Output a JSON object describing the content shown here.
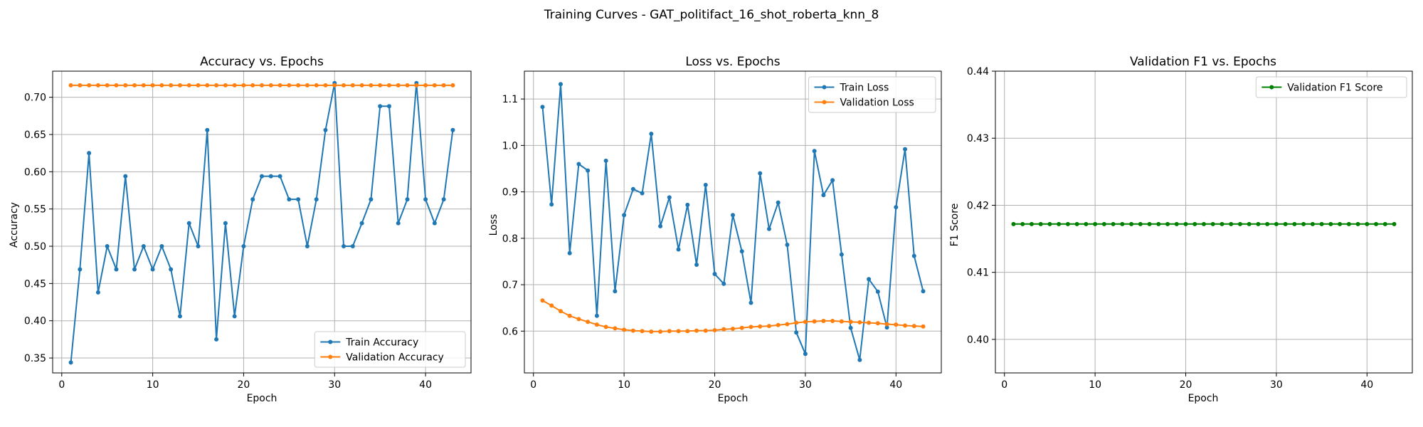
{
  "figure": {
    "suptitle": "Training Curves - GAT_politifact_16_shot_roberta_knn_8"
  },
  "chart_data": [
    {
      "type": "line",
      "title": "Accuracy vs. Epochs",
      "xlabel": "Epoch",
      "ylabel": "Accuracy",
      "xlim": [
        -1,
        45
      ],
      "ylim": [
        0.33,
        0.735
      ],
      "xticks": [
        0,
        10,
        20,
        30,
        40
      ],
      "yticks": [
        0.35,
        0.4,
        0.45,
        0.5,
        0.55,
        0.6,
        0.65,
        0.7
      ],
      "yformat": 2,
      "grid": true,
      "legend_position": "lower right",
      "x": [
        1,
        2,
        3,
        4,
        5,
        6,
        7,
        8,
        9,
        10,
        11,
        12,
        13,
        14,
        15,
        16,
        17,
        18,
        19,
        20,
        21,
        22,
        23,
        24,
        25,
        26,
        27,
        28,
        29,
        30,
        31,
        32,
        33,
        34,
        35,
        36,
        37,
        38,
        39,
        40,
        41,
        42,
        43
      ],
      "series": [
        {
          "name": "Train Accuracy",
          "color": "#1f77b4",
          "values": [
            0.344,
            0.469,
            0.625,
            0.438,
            0.5,
            0.469,
            0.594,
            0.469,
            0.5,
            0.469,
            0.5,
            0.469,
            0.406,
            0.531,
            0.5,
            0.656,
            0.375,
            0.531,
            0.406,
            0.5,
            0.563,
            0.594,
            0.594,
            0.594,
            0.563,
            0.563,
            0.5,
            0.563,
            0.656,
            0.719,
            0.5,
            0.5,
            0.531,
            0.563,
            0.688,
            0.688,
            0.531,
            0.563,
            0.719,
            0.563,
            0.531,
            0.563,
            0.656
          ]
        },
        {
          "name": "Validation Accuracy",
          "color": "#ff7f0e",
          "values": [
            0.716,
            0.716,
            0.716,
            0.716,
            0.716,
            0.716,
            0.716,
            0.716,
            0.716,
            0.716,
            0.716,
            0.716,
            0.716,
            0.716,
            0.716,
            0.716,
            0.716,
            0.716,
            0.716,
            0.716,
            0.716,
            0.716,
            0.716,
            0.716,
            0.716,
            0.716,
            0.716,
            0.716,
            0.716,
            0.716,
            0.716,
            0.716,
            0.716,
            0.716,
            0.716,
            0.716,
            0.716,
            0.716,
            0.716,
            0.716,
            0.716,
            0.716,
            0.716
          ]
        }
      ]
    },
    {
      "type": "line",
      "title": "Loss vs. Epochs",
      "xlabel": "Epoch",
      "ylabel": "Loss",
      "xlim": [
        -1,
        45
      ],
      "ylim": [
        0.51,
        1.16
      ],
      "xticks": [
        0,
        10,
        20,
        30,
        40
      ],
      "yticks": [
        0.6,
        0.7,
        0.8,
        0.9,
        1.0,
        1.1
      ],
      "yformat": 1,
      "grid": true,
      "legend_position": "upper right",
      "x": [
        1,
        2,
        3,
        4,
        5,
        6,
        7,
        8,
        9,
        10,
        11,
        12,
        13,
        14,
        15,
        16,
        17,
        18,
        19,
        20,
        21,
        22,
        23,
        24,
        25,
        26,
        27,
        28,
        29,
        30,
        31,
        32,
        33,
        34,
        35,
        36,
        37,
        38,
        39,
        40,
        41,
        42,
        43
      ],
      "series": [
        {
          "name": "Train Loss",
          "color": "#1f77b4",
          "values": [
            1.083,
            0.873,
            1.132,
            0.768,
            0.96,
            0.946,
            0.633,
            0.967,
            0.686,
            0.85,
            0.906,
            0.897,
            1.025,
            0.826,
            0.888,
            0.776,
            0.872,
            0.743,
            0.915,
            0.723,
            0.702,
            0.85,
            0.772,
            0.661,
            0.94,
            0.82,
            0.877,
            0.786,
            0.597,
            0.551,
            0.988,
            0.893,
            0.925,
            0.765,
            0.607,
            0.538,
            0.712,
            0.685,
            0.608,
            0.867,
            0.992,
            0.762,
            0.686
          ]
        },
        {
          "name": "Validation Loss",
          "color": "#ff7f0e",
          "values": [
            0.666,
            0.655,
            0.643,
            0.633,
            0.626,
            0.62,
            0.614,
            0.609,
            0.606,
            0.603,
            0.601,
            0.6,
            0.599,
            0.599,
            0.6,
            0.6,
            0.6,
            0.601,
            0.601,
            0.602,
            0.604,
            0.605,
            0.607,
            0.609,
            0.61,
            0.611,
            0.613,
            0.615,
            0.618,
            0.62,
            0.621,
            0.622,
            0.622,
            0.621,
            0.62,
            0.619,
            0.618,
            0.617,
            0.615,
            0.614,
            0.612,
            0.611,
            0.61
          ]
        }
      ]
    },
    {
      "type": "line",
      "title": "Validation F1 vs. Epochs",
      "xlabel": "Epoch",
      "ylabel": "F1 Score",
      "xlim": [
        -1,
        45
      ],
      "ylim": [
        0.395,
        0.44
      ],
      "xticks": [
        0,
        10,
        20,
        30,
        40
      ],
      "yticks": [
        0.4,
        0.41,
        0.42,
        0.43,
        0.44
      ],
      "yformat": 2,
      "grid": true,
      "legend_position": "upper right",
      "x": [
        1,
        2,
        3,
        4,
        5,
        6,
        7,
        8,
        9,
        10,
        11,
        12,
        13,
        14,
        15,
        16,
        17,
        18,
        19,
        20,
        21,
        22,
        23,
        24,
        25,
        26,
        27,
        28,
        29,
        30,
        31,
        32,
        33,
        34,
        35,
        36,
        37,
        38,
        39,
        40,
        41,
        42,
        43
      ],
      "series": [
        {
          "name": "Validation F1 Score",
          "color": "#008000",
          "values": [
            0.4172,
            0.4172,
            0.4172,
            0.4172,
            0.4172,
            0.4172,
            0.4172,
            0.4172,
            0.4172,
            0.4172,
            0.4172,
            0.4172,
            0.4172,
            0.4172,
            0.4172,
            0.4172,
            0.4172,
            0.4172,
            0.4172,
            0.4172,
            0.4172,
            0.4172,
            0.4172,
            0.4172,
            0.4172,
            0.4172,
            0.4172,
            0.4172,
            0.4172,
            0.4172,
            0.4172,
            0.4172,
            0.4172,
            0.4172,
            0.4172,
            0.4172,
            0.4172,
            0.4172,
            0.4172,
            0.4172,
            0.4172,
            0.4172,
            0.4172
          ]
        }
      ]
    }
  ]
}
